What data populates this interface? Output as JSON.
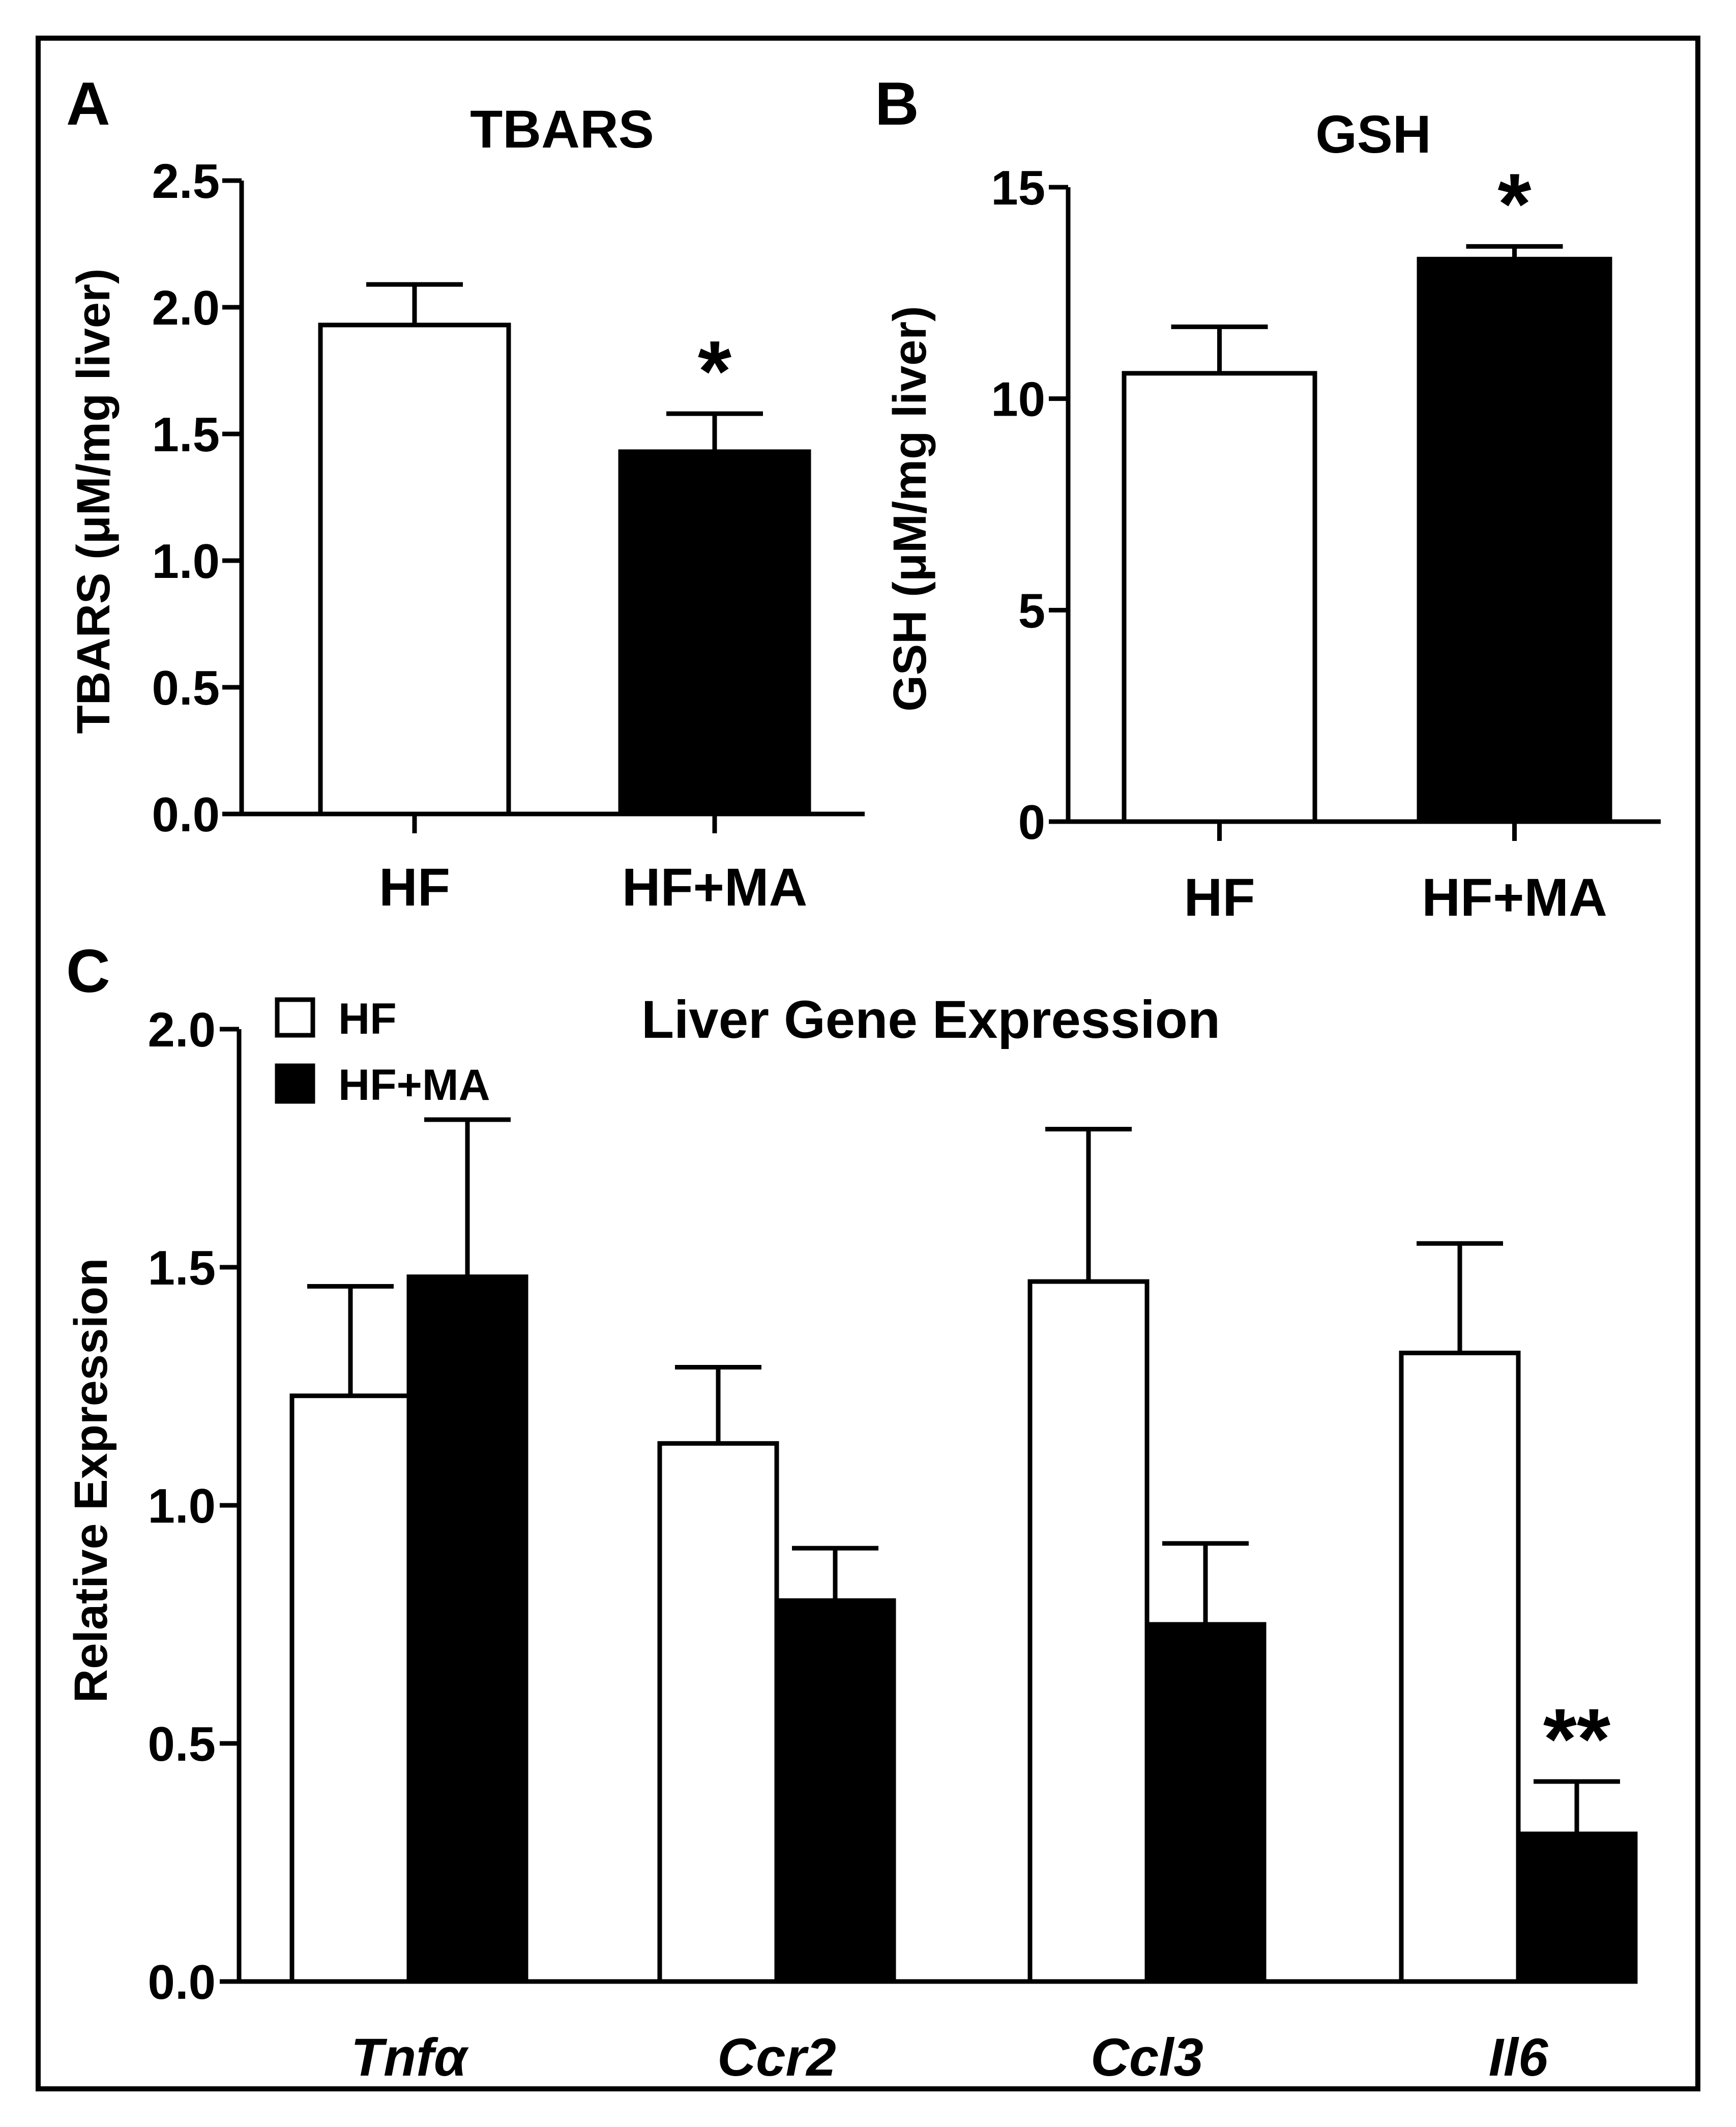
{
  "chart_data": [
    {
      "panel": "A",
      "type": "bar",
      "title": "TBARS",
      "ylabel": "TBARS (μM/mg liver)",
      "xlabel": "",
      "categories": [
        "HF",
        "HF+MA"
      ],
      "values": [
        1.93,
        1.43
      ],
      "errors": [
        0.16,
        0.15
      ],
      "fills": [
        "#ffffff",
        "#000000"
      ],
      "significance": [
        "",
        "*"
      ],
      "ylim": [
        0,
        2.5
      ],
      "yticks": [
        0.0,
        0.5,
        1.0,
        1.5,
        2.0,
        2.5
      ],
      "ytick_labels": [
        "0.0",
        "0.5",
        "1.0",
        "1.5",
        "2.0",
        "2.5"
      ]
    },
    {
      "panel": "B",
      "type": "bar",
      "title": "GSH",
      "ylabel": "GSH (μM/mg liver)",
      "xlabel": "",
      "categories": [
        "HF",
        "HF+MA"
      ],
      "values": [
        10.6,
        13.3
      ],
      "errors": [
        1.1,
        0.3
      ],
      "fills": [
        "#ffffff",
        "#000000"
      ],
      "significance": [
        "",
        "*"
      ],
      "ylim": [
        0,
        15
      ],
      "yticks": [
        0,
        5,
        10,
        15
      ],
      "ytick_labels": [
        "0",
        "5",
        "10",
        "15"
      ]
    },
    {
      "panel": "C",
      "type": "bar",
      "title": "Liver Gene Expression",
      "ylabel": "Relative Expression",
      "xlabel": "",
      "categories": [
        "Tnfα",
        "Ccr2",
        "Ccl3",
        "Il6"
      ],
      "series": [
        {
          "name": "HF",
          "fill": "#ffffff",
          "values": [
            1.23,
            1.13,
            1.47,
            1.32
          ],
          "errors": [
            0.23,
            0.16,
            0.32,
            0.23
          ],
          "significance": [
            "",
            "",
            "",
            ""
          ]
        },
        {
          "name": "HF+MA",
          "fill": "#000000",
          "values": [
            1.48,
            0.8,
            0.75,
            0.31
          ],
          "errors": [
            0.33,
            0.11,
            0.17,
            0.11
          ],
          "significance": [
            "",
            "",
            "",
            "**"
          ]
        }
      ],
      "legend": "top-left",
      "ylim": [
        0,
        2.0
      ],
      "yticks": [
        0.0,
        0.5,
        1.0,
        1.5,
        2.0
      ],
      "ytick_labels": [
        "0.0",
        "0.5",
        "1.0",
        "1.5",
        "2.0"
      ]
    }
  ]
}
